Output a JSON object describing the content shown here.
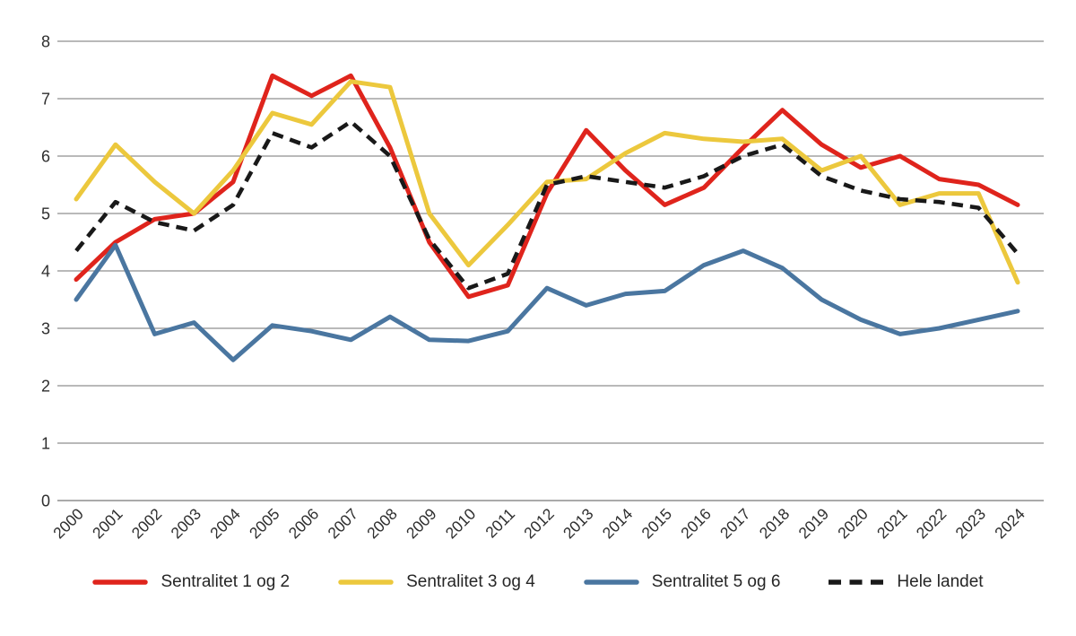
{
  "chart_data": {
    "type": "line",
    "title": "",
    "xlabel": "",
    "ylabel": "",
    "x": [
      "2000",
      "2001",
      "2002",
      "2003",
      "2004",
      "2005",
      "2006",
      "2007",
      "2008",
      "2009",
      "2010",
      "2011",
      "2012",
      "2013",
      "2014",
      "2015",
      "2016",
      "2017",
      "2018",
      "2019",
      "2020",
      "2021",
      "2022",
      "2023",
      "2024"
    ],
    "ylim": [
      0,
      8
    ],
    "yticks": [
      "0",
      "1",
      "2",
      "3",
      "4",
      "5",
      "6",
      "7",
      "8"
    ],
    "grid": "horizontal",
    "legend_position": "bottom",
    "series": [
      {
        "name": "Sentralitet 1 og 2",
        "color": "#df241c",
        "style": "solid",
        "values": [
          3.85,
          4.5,
          4.9,
          5.0,
          5.55,
          7.4,
          7.05,
          7.4,
          6.15,
          4.5,
          3.55,
          3.75,
          5.35,
          6.45,
          5.75,
          5.15,
          5.45,
          6.15,
          6.8,
          6.2,
          5.8,
          6.0,
          5.6,
          5.5,
          5.15
        ]
      },
      {
        "name": "Sentralitet 3 og 4",
        "color": "#ecc83d",
        "style": "solid",
        "values": [
          5.25,
          6.2,
          5.55,
          5.0,
          5.75,
          6.75,
          6.55,
          7.3,
          7.2,
          5.0,
          4.1,
          4.8,
          5.55,
          5.6,
          6.05,
          6.4,
          6.3,
          6.25,
          6.3,
          5.75,
          6.0,
          5.15,
          5.35,
          5.35,
          3.8
        ]
      },
      {
        "name": "Sentralitet 5 og 6",
        "color": "#4a76a0",
        "style": "solid",
        "values": [
          3.5,
          4.45,
          2.9,
          3.1,
          2.45,
          3.05,
          2.95,
          2.8,
          3.2,
          2.8,
          2.78,
          2.95,
          3.7,
          3.4,
          3.6,
          3.65,
          4.1,
          4.35,
          4.05,
          3.5,
          3.15,
          2.9,
          3.0,
          3.15,
          3.3
        ]
      },
      {
        "name": "Hele landet",
        "color": "#191919",
        "style": "dashed",
        "values": [
          4.35,
          5.2,
          4.85,
          4.7,
          5.15,
          6.4,
          6.15,
          6.6,
          6.0,
          4.55,
          3.7,
          3.95,
          5.5,
          5.65,
          5.55,
          5.45,
          5.65,
          6.0,
          6.2,
          5.65,
          5.4,
          5.25,
          5.2,
          5.1,
          4.3
        ]
      }
    ],
    "colors": {
      "gridline": "#8f8f8f",
      "baseline": "#777777",
      "axis_text": "#2e2e2e"
    }
  }
}
